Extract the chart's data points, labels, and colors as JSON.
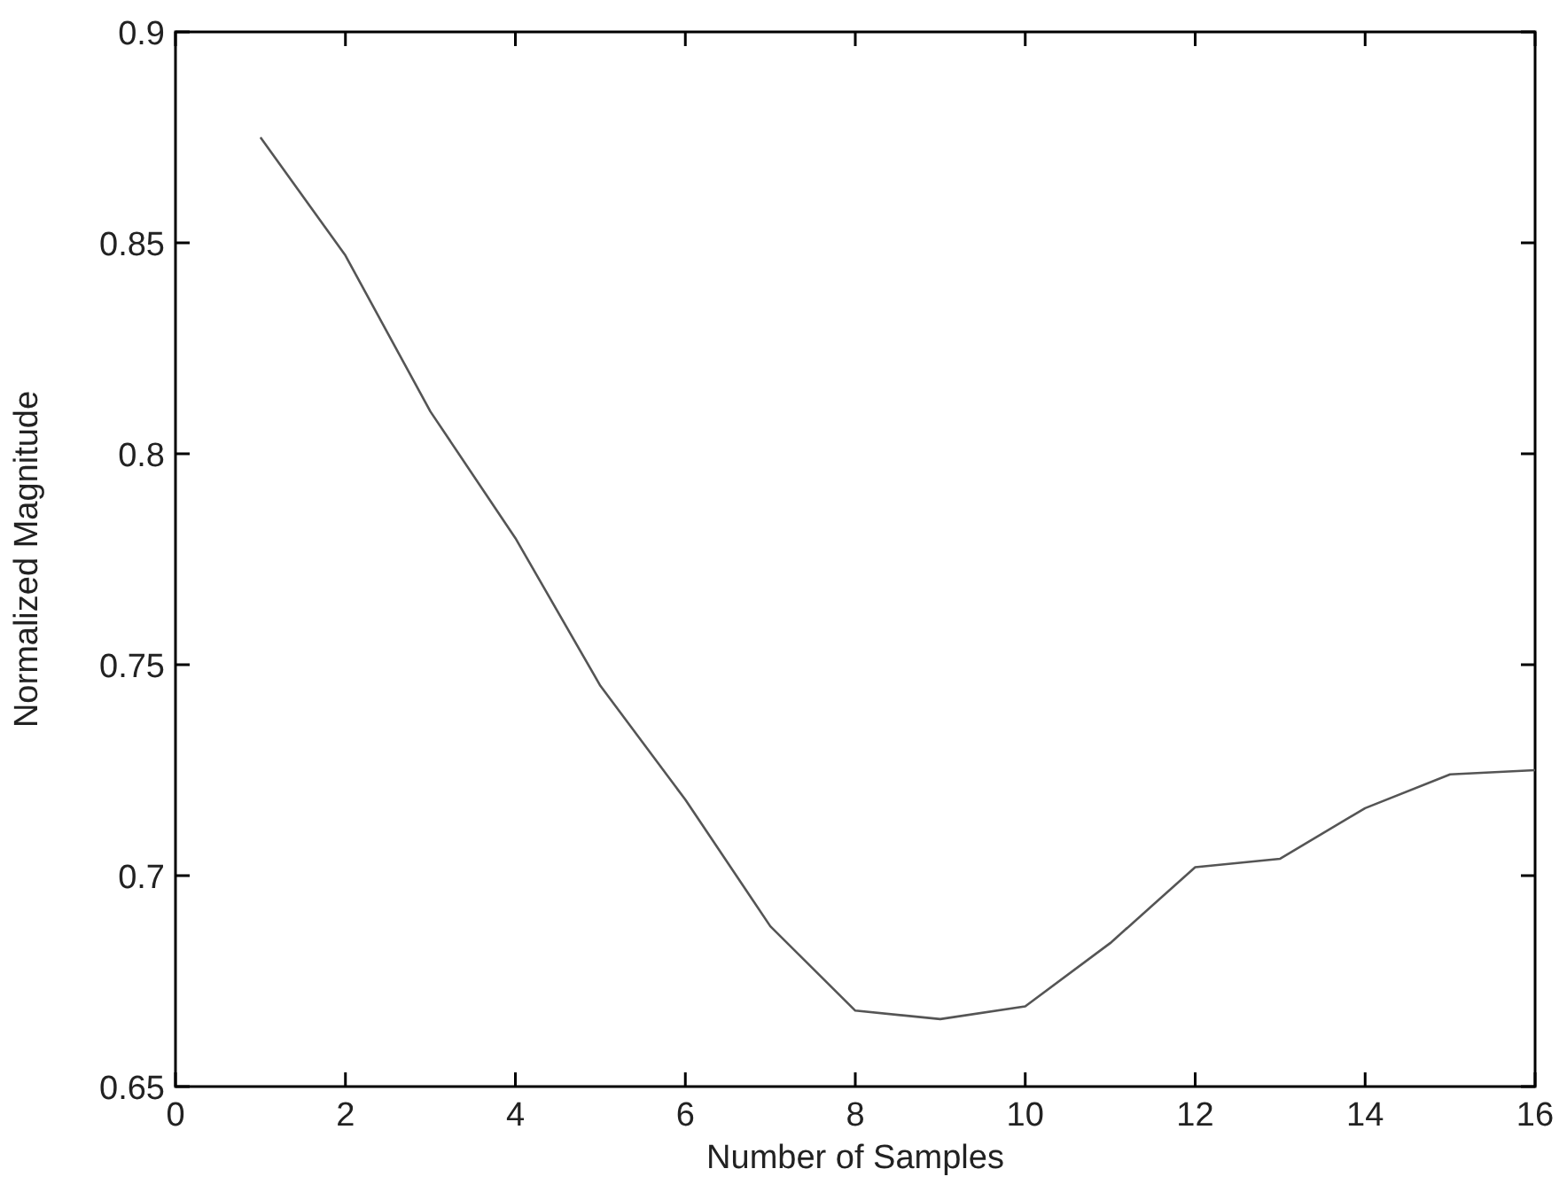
{
  "chart_data": {
    "type": "line",
    "xlabel": "Number of Samples",
    "ylabel": "Normalized Magnitude",
    "x": [
      1,
      2,
      3,
      4,
      5,
      6,
      7,
      8,
      9,
      10,
      11,
      12,
      13,
      14,
      15,
      16
    ],
    "series": [
      {
        "color": "#555555",
        "values": [
          0.875,
          0.847,
          0.81,
          0.78,
          0.745,
          0.718,
          0.688,
          0.668,
          0.666,
          0.669,
          0.684,
          0.702,
          0.704,
          0.716,
          0.724,
          0.725
        ]
      }
    ],
    "xlim": [
      0,
      16
    ],
    "xticks": [
      0,
      2,
      4,
      6,
      8,
      10,
      12,
      14,
      16
    ],
    "ylim": [
      0.65,
      0.9
    ],
    "yticks": [
      0.65,
      0.7,
      0.75,
      0.8,
      0.85,
      0.9
    ],
    "grid": false,
    "marker": "none",
    "line_style": "solid"
  }
}
